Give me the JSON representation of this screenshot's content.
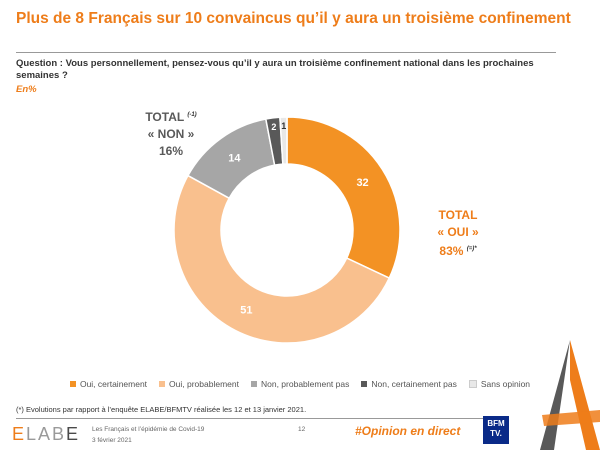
{
  "title": "Plus de 8 Français sur 10 convaincus qu’il y aura un troisième confinement",
  "question": "Question : Vous personnellement, pensez-vous qu’il y aura un troisième confinement national dans les prochaines semaines ?",
  "unit_label": "En%",
  "totals": {
    "non_label": "TOTAL",
    "non_sup": "(-1)",
    "non_name": "« NON »",
    "non_value": "16%",
    "oui_label": "TOTAL",
    "oui_name": "« OUI »",
    "oui_value": "83%",
    "oui_sup": "(=)*"
  },
  "chart_data": {
    "type": "pie",
    "title": "Plus de 8 Français sur 10 convaincus qu’il y aura un troisième confinement",
    "categories": [
      "Oui, certainement",
      "Oui, probablement",
      "Non, probablement pas",
      "Non, certainement pas",
      "Sans opinion"
    ],
    "values": [
      32,
      51,
      14,
      2,
      1
    ],
    "colors": [
      "#f39224",
      "#f9c08e",
      "#a6a6a6",
      "#595959",
      "#e8e8e8"
    ],
    "label_colors": [
      "#ffffff",
      "#ffffff",
      "#ffffff",
      "#ffffff",
      "#333333"
    ],
    "donut": true,
    "legend_position": "bottom"
  },
  "footnote": "(*) Evolutions par rapport à l’enquête ELABE/BFMTV réalisée les 12 et 13 janvier 2021.",
  "footer": {
    "logo": "ELABE",
    "subject": "Les Français et l’épidémie de Covid-19",
    "date": "3 février 2021",
    "page": "12",
    "hashtag": "#Opinion en direct",
    "partner_line1": "BFM",
    "partner_line2": "TV."
  }
}
